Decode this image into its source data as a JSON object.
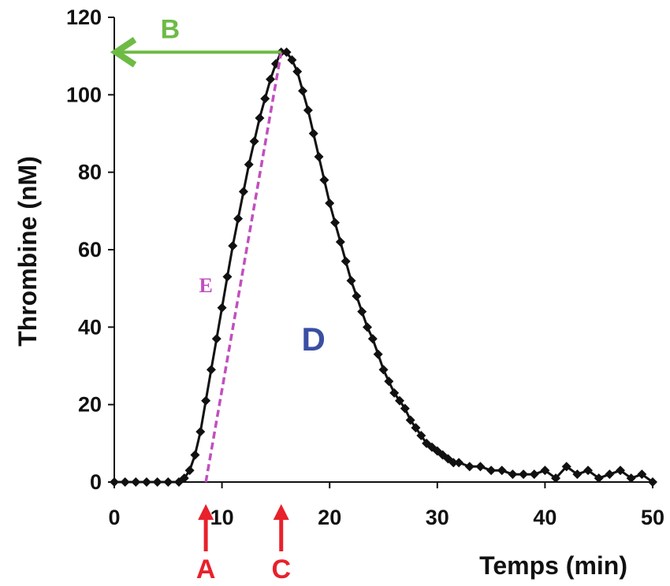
{
  "chart_data": {
    "type": "line",
    "xlabel": "Temps (min)",
    "ylabel": "Thrombine (nM)",
    "xlim": [
      0,
      50
    ],
    "ylim": [
      0,
      120
    ],
    "xticks": [
      0,
      10,
      20,
      30,
      40,
      50
    ],
    "yticks": [
      0,
      20,
      40,
      60,
      80,
      100,
      120
    ],
    "grid": false,
    "colors": {
      "series": "#111111",
      "arrow_b": "#6dbb45",
      "arrows_ac": "#e8212b",
      "slope_e": "#c14fbf",
      "label_d": "#3a4fa3"
    },
    "series": [
      {
        "marker": "diamond",
        "x": [
          0,
          1,
          2,
          3,
          4,
          5,
          6,
          6.5,
          7,
          7.5,
          8,
          8.5,
          9,
          9.5,
          10,
          10.5,
          11,
          11.5,
          12,
          12.5,
          13,
          13.5,
          14,
          14.5,
          15,
          15.5,
          16,
          16.5,
          17,
          17.5,
          18,
          18.5,
          19,
          19.5,
          20,
          20.5,
          21,
          21.5,
          22,
          22.5,
          23,
          23.5,
          24,
          24.5,
          25,
          25.5,
          26,
          26.5,
          27,
          27.5,
          28,
          28.5,
          29,
          29.5,
          30,
          30.5,
          31,
          31.5,
          32,
          33,
          34,
          35,
          36,
          37,
          38,
          39,
          40,
          41,
          42,
          43,
          44,
          45,
          46,
          47,
          48,
          49,
          50
        ],
        "y": [
          0,
          0,
          0,
          0,
          0,
          0,
          0,
          1,
          3,
          7,
          13,
          21,
          29,
          37,
          45,
          53,
          61,
          68,
          75,
          82,
          88,
          94,
          99,
          104,
          108,
          111,
          111,
          109,
          106,
          101,
          96,
          90,
          84,
          78,
          72,
          67,
          62,
          57,
          52,
          48,
          44,
          40,
          37,
          33,
          29,
          26,
          23,
          21,
          19,
          16,
          14,
          12,
          10,
          9,
          8,
          7,
          6,
          5,
          5,
          4,
          4,
          3,
          3,
          2,
          2,
          2,
          3,
          1,
          4,
          2,
          3,
          1,
          2,
          3,
          1,
          2,
          0
        ]
      }
    ],
    "annotations": {
      "A": {
        "label": "A",
        "x": 8.5
      },
      "B": {
        "label": "B",
        "y": 111
      },
      "C": {
        "label": "C",
        "x": 15.5
      },
      "D": {
        "label": "D",
        "x": 18.5,
        "y": 34
      },
      "E": {
        "label": "E",
        "x": 8.5,
        "y": 49
      },
      "slope_from": {
        "x": 8.5,
        "y": 0
      },
      "slope_to": {
        "x": 15.5,
        "y": 111
      }
    }
  }
}
